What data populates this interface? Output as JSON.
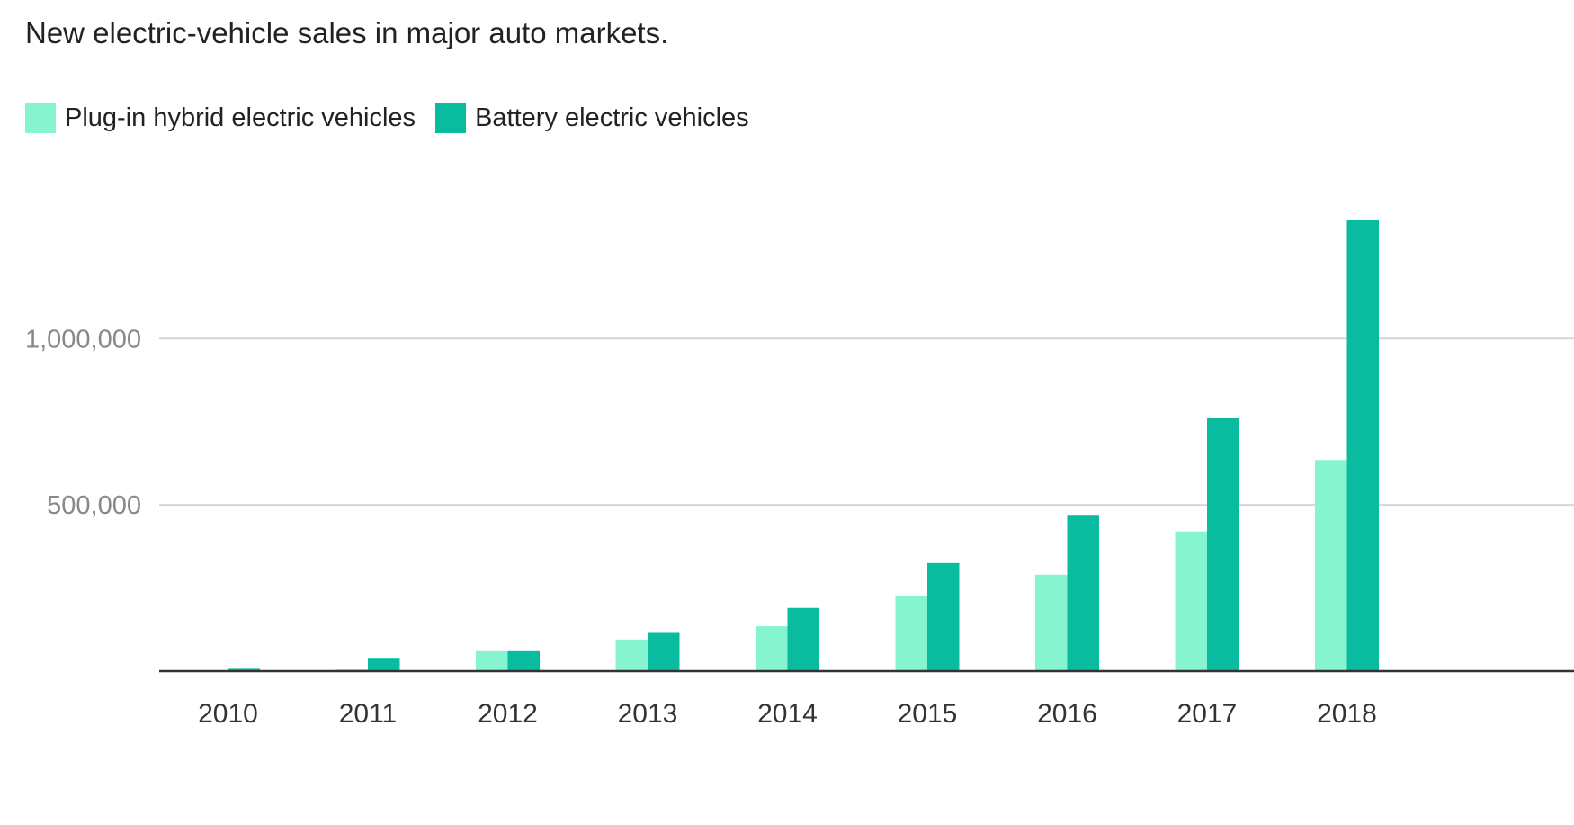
{
  "chart_data": {
    "type": "bar",
    "title": "New electric-vehicle sales in major auto markets.",
    "xlabel": "",
    "ylabel": "",
    "categories": [
      "2010",
      "2011",
      "2012",
      "2013",
      "2014",
      "2015",
      "2016",
      "2017",
      "2018"
    ],
    "series": [
      {
        "name": "Plug-in hybrid electric vehicles",
        "color": "#86f5cf",
        "values": [
          0,
          5000,
          60000,
          95000,
          135000,
          225000,
          290000,
          420000,
          635000
        ]
      },
      {
        "name": "Battery electric vehicles",
        "color": "#0abc9f",
        "values": [
          7000,
          40000,
          60000,
          115000,
          190000,
          325000,
          470000,
          760000,
          1355000
        ]
      }
    ],
    "ylim": [
      0,
      1355000
    ],
    "yticks": [
      {
        "value": 500000,
        "label": "500,000"
      },
      {
        "value": 1000000,
        "label": "1,000,000"
      }
    ],
    "grid": true,
    "legend_position": "top-left"
  }
}
